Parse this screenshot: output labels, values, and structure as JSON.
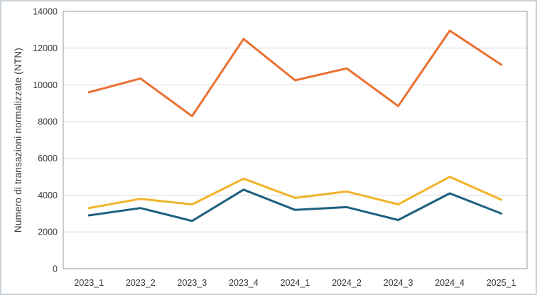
{
  "chart_data": {
    "type": "line",
    "title": "",
    "xlabel": "",
    "ylabel": "Numero di transazioni normalizzate (NTN)",
    "categories": [
      "2023_1",
      "2023_2",
      "2023_3",
      "2023_4",
      "2024_1",
      "2024_2",
      "2024_3",
      "2024_4",
      "2025_1"
    ],
    "series": [
      {
        "id": "orange",
        "color": "#E97132",
        "values": [
          9600,
          10350,
          8300,
          12500,
          10250,
          10900,
          8850,
          12950,
          11100
        ]
      },
      {
        "id": "yellow",
        "color": "#F0B429",
        "values": [
          3300,
          3800,
          3500,
          4900,
          3850,
          4200,
          3500,
          5000,
          3750
        ]
      },
      {
        "id": "blue",
        "color": "#1E6080",
        "values": [
          2900,
          3300,
          2600,
          4300,
          3200,
          3350,
          2650,
          4100,
          3000
        ]
      }
    ],
    "ylim": [
      0,
      14000
    ],
    "y_ticks": [
      0,
      2000,
      4000,
      6000,
      8000,
      10000,
      12000,
      14000
    ],
    "grid": true,
    "legend": "none",
    "colors": {
      "grid_line": "#d9d9d9",
      "plot_border": "#ababab",
      "tick_text": "#3a3a3a",
      "outer_frame": "#c9d2d9",
      "background": "#ffffff"
    }
  }
}
